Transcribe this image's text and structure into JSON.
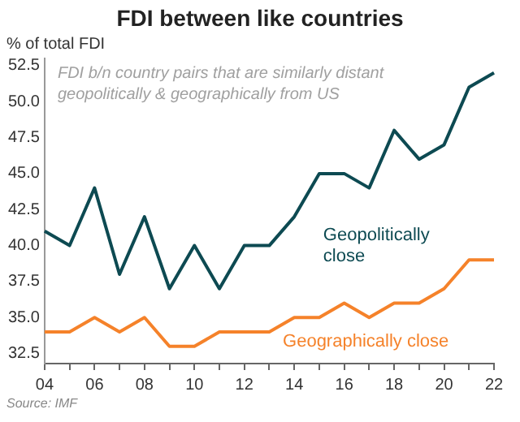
{
  "chart_data": {
    "type": "line",
    "title": "FDI between like countries",
    "ylabel": "% of total FDI",
    "categories": [
      "04",
      null,
      "06",
      null,
      "08",
      null,
      "10",
      null,
      "12",
      null,
      "14",
      null,
      "16",
      null,
      "18",
      null,
      "20",
      null,
      "22"
    ],
    "series": [
      {
        "name": "Geopolitically close",
        "color": "#0d4a52",
        "values": [
          41,
          40,
          44,
          38,
          42,
          37,
          40,
          37,
          40,
          40,
          42,
          45,
          45,
          44,
          48,
          46,
          47,
          51,
          52
        ]
      },
      {
        "name": "Geographically close",
        "color": "#f5822a",
        "values": [
          34,
          34,
          35,
          34,
          35,
          33,
          33,
          34,
          34,
          34,
          35,
          35,
          36,
          35,
          36,
          36,
          37,
          39,
          39
        ]
      }
    ],
    "ylim": [
      31.8,
      53
    ],
    "yticks": [
      {
        "value": 32.5,
        "label": "32.5"
      },
      {
        "value": 35,
        "label": "35.0"
      },
      {
        "value": 37.5,
        "label": "37.5"
      },
      {
        "value": 40,
        "label": "40.0"
      },
      {
        "value": 42.5,
        "label": "42.5"
      },
      {
        "value": 45,
        "label": "45.0"
      },
      {
        "value": 47.5,
        "label": "47.5"
      },
      {
        "value": 50,
        "label": "50.0"
      },
      {
        "value": 52.5,
        "label": "52.5"
      }
    ],
    "grid": false,
    "legend": false,
    "marker": "none",
    "line_style": "solid",
    "annotations": [
      "FDI b/n country pairs that are similarly distant geopolitically & geographically from US",
      "Source: IMF"
    ]
  }
}
